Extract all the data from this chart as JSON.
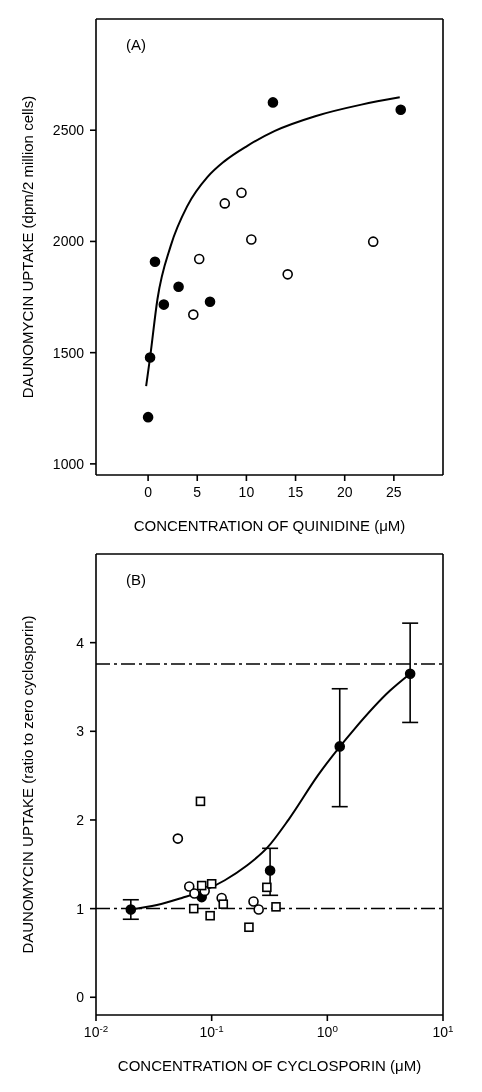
{
  "chart_data": [
    {
      "type": "scatter",
      "annotations": [
        "(A)"
      ],
      "xlabel": "CONCENTRATION OF QUINIDINE (μM)",
      "ylabel": "DAUNOMYCIN UPTAKE (dpm/2 million cells)",
      "xlim": [
        -5.3,
        30
      ],
      "xticks": [
        0,
        5,
        10,
        15,
        20,
        25
      ],
      "ylim": [
        950,
        3000
      ],
      "yticks": [
        1000,
        1500,
        2000,
        2500
      ],
      "grid": false,
      "legend": false,
      "series": [
        {
          "color": "#000000",
          "marker": "circle",
          "x": [
            0,
            0.2,
            0.7,
            1.6,
            3.1,
            6.3,
            12.7,
            25.7
          ],
          "values": [
            1210,
            1478,
            1909,
            1716,
            1796,
            1729,
            2625,
            2592
          ]
        },
        {
          "color": "#ffffff",
          "marker": "circle",
          "x": [
            4.6,
            5.2,
            7.8,
            9.5,
            10.5,
            14.2,
            22.9
          ],
          "values": [
            1671,
            1921,
            2171,
            2219,
            2009,
            1852,
            1999
          ]
        },
        {
          "type": "line",
          "color": "#000000",
          "x": [
            -0.2,
            0.2,
            0.95,
            2.3,
            4,
            6.05,
            7.75,
            10.1,
            12.9,
            17,
            21.7,
            25.6
          ],
          "values": [
            1350,
            1478,
            1740,
            1980,
            2160,
            2290,
            2360,
            2430,
            2497,
            2563,
            2615,
            2648
          ]
        }
      ]
    },
    {
      "type": "scatter",
      "annotations": [
        "(B)"
      ],
      "xlabel": "CONCENTRATION OF CYCLOSPORIN (μM)",
      "ylabel": "DAUNOMYCIN UPTAKE (ratio to zero cyclosporin)",
      "log": "x",
      "xlim": [
        0.01,
        10
      ],
      "xticks": [
        {
          "value": 0.01,
          "label": "10$^{-2}$"
        },
        {
          "value": 0.1,
          "label": "10$^{-1}$"
        },
        {
          "value": 1,
          "label": "10$^{0}$"
        },
        {
          "value": 10,
          "label": "10$^{1}$"
        }
      ],
      "ylim": [
        -0.2,
        5
      ],
      "yticks": [
        0,
        1,
        2,
        3,
        4
      ],
      "grid": false,
      "legend": false,
      "ref_lines": [
        {
          "axis": "y",
          "value": 3.76,
          "line_style": "dashed",
          "color": "#000000"
        },
        {
          "axis": "y",
          "value": 1,
          "line_style": "dashed",
          "color": "#000000"
        }
      ],
      "series": [
        {
          "color": "#000000",
          "marker": "circle",
          "x": [
            0.02,
            0.082,
            0.32,
            1.28,
            5.2
          ],
          "values": [
            0.99,
            1.13,
            1.43,
            2.83,
            3.65
          ],
          "errors": [
            [
              0.88,
              1.1
            ],
            null,
            [
              1.15,
              1.68
            ],
            [
              2.15,
              3.48
            ],
            [
              3.1,
              4.22
            ]
          ]
        },
        {
          "color": "#ffffff",
          "marker": "circle",
          "x": [
            0.051,
            0.064,
            0.071,
            0.087,
            0.094,
            0.122,
            0.23,
            0.255
          ],
          "values": [
            1.79,
            1.25,
            1.17,
            1.2,
            null,
            1.12,
            1.08,
            0.99
          ]
        },
        {
          "color": "#ffffff",
          "marker": "square",
          "x": [
            0.08,
            0.07,
            0.082,
            0.1,
            0.097,
            0.126,
            0.21,
            0.3,
            0.36
          ],
          "values": [
            2.21,
            1.0,
            1.26,
            1.28,
            0.92,
            1.05,
            0.79,
            1.24,
            1.02
          ]
        },
        {
          "type": "line",
          "color": "#000000",
          "x": [
            0.02,
            0.0336,
            0.0552,
            0.0847,
            0.13,
            0.199,
            0.304,
            0.466,
            0.826,
            1.7,
            3.49,
            5.2
          ],
          "values": [
            0.99,
            1.04,
            1.12,
            1.2,
            1.32,
            1.48,
            1.69,
            2.01,
            2.5,
            3.02,
            3.46,
            3.65
          ]
        }
      ]
    }
  ]
}
